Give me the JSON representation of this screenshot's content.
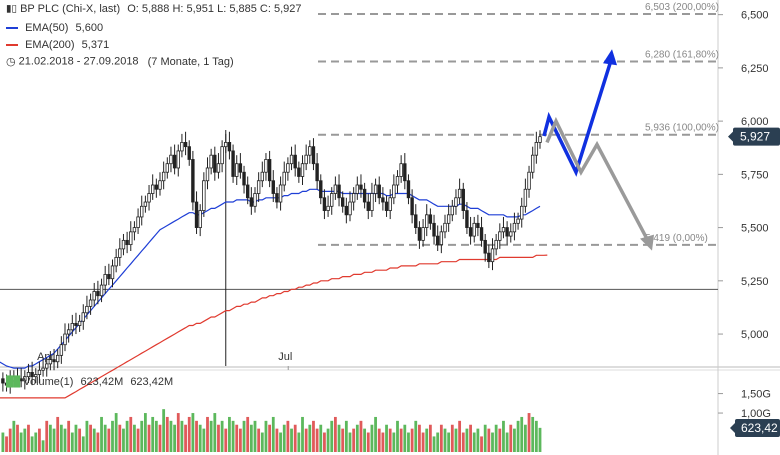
{
  "header": {
    "instrument": "BP PLC (Chi-X, last)",
    "ohlc": "O: 5,888  H: 5,951  L: 5,885  C: 5,927",
    "ema50_label": "EMA(50)",
    "ema50_value": "5,600",
    "ema200_label": "EMA(200)",
    "ema200_value": "5,371",
    "period": "21.02.2018 - 27.09.2018",
    "period_detail": "(7 Monate, 1 Tag)"
  },
  "volume_legend": {
    "label": "Volume(1)",
    "value1": "623,42M",
    "value2": "623,42M"
  },
  "colors": {
    "candle": "#222222",
    "ema50": "#1f3fd6",
    "ema200": "#e03a2f",
    "fib": "#999999",
    "arrow_up": "#1030e0",
    "arrow_gray": "#9a9a9a",
    "volume_up": "#5cb85c",
    "volume_down": "#e05a5a",
    "badge": "#2b3f52"
  },
  "chart_data": {
    "type": "candlestick",
    "price_axis": {
      "ylim": [
        4.85,
        6.55
      ],
      "ticks": [
        "6,500",
        "6,250",
        "6,000",
        "5,750",
        "5,500",
        "5,250",
        "5,000"
      ],
      "tick_values": [
        6.5,
        6.25,
        6.0,
        5.75,
        5.5,
        5.25,
        5.0
      ]
    },
    "volume_axis": {
      "ylim": [
        0,
        1.9
      ],
      "ticks": [
        "1,50G",
        "1,00G"
      ],
      "tick_values": [
        1.5,
        1.0
      ]
    },
    "x_labels": [
      {
        "label": "Apr",
        "index": 20
      },
      {
        "label": "Jul",
        "index": 86
      }
    ],
    "last_price": "5,927",
    "last_volume": "623,42",
    "fib_levels": [
      {
        "label": "6,503 (200,00%)",
        "value": 6.503
      },
      {
        "label": "6,280 (161,80%)",
        "value": 6.28
      },
      {
        "label": "5,936 (100,00%)",
        "value": 5.936
      },
      {
        "label": "5,419 (0,00%)",
        "value": 5.419
      }
    ],
    "horizontal_line": 5.21,
    "vertical_line_index": 70,
    "close": [
      4.82,
      4.8,
      4.78,
      4.79,
      4.77,
      4.75,
      4.78,
      4.8,
      4.79,
      4.77,
      4.76,
      4.78,
      4.8,
      4.79,
      4.78,
      4.8,
      4.82,
      4.8,
      4.81,
      4.83,
      4.84,
      4.86,
      4.88,
      4.87,
      4.9,
      4.95,
      5.0,
      5.02,
      5.05,
      5.04,
      5.06,
      5.1,
      5.13,
      5.16,
      5.2,
      5.18,
      5.23,
      5.28,
      5.26,
      5.32,
      5.36,
      5.4,
      5.44,
      5.42,
      5.48,
      5.5,
      5.55,
      5.6,
      5.62,
      5.66,
      5.7,
      5.68,
      5.72,
      5.76,
      5.8,
      5.84,
      5.78,
      5.86,
      5.9,
      5.88,
      5.82,
      5.62,
      5.5,
      5.58,
      5.72,
      5.78,
      5.84,
      5.76,
      5.8,
      5.88,
      5.9,
      5.86,
      5.74,
      5.8,
      5.76,
      5.7,
      5.64,
      5.6,
      5.66,
      5.72,
      5.76,
      5.82,
      5.72,
      5.66,
      5.62,
      5.7,
      5.76,
      5.8,
      5.84,
      5.78,
      5.74,
      5.8,
      5.84,
      5.88,
      5.8,
      5.72,
      5.64,
      5.58,
      5.6,
      5.66,
      5.7,
      5.64,
      5.6,
      5.56,
      5.62,
      5.66,
      5.7,
      5.68,
      5.62,
      5.58,
      5.66,
      5.7,
      5.64,
      5.62,
      5.58,
      5.64,
      5.7,
      5.74,
      5.8,
      5.72,
      5.64,
      5.56,
      5.5,
      5.44,
      5.5,
      5.56,
      5.52,
      5.46,
      5.42,
      5.48,
      5.52,
      5.56,
      5.6,
      5.64,
      5.68,
      5.58,
      5.5,
      5.46,
      5.52,
      5.5,
      5.44,
      5.38,
      5.34,
      5.4,
      5.44,
      5.48,
      5.5,
      5.46,
      5.48,
      5.52,
      5.54,
      5.6,
      5.68,
      5.76,
      5.84,
      5.9,
      5.927
    ],
    "ema50": [
      4.95,
      4.94,
      4.93,
      4.92,
      4.91,
      4.9,
      4.89,
      4.88,
      4.87,
      4.86,
      4.85,
      4.845,
      4.84,
      4.84,
      4.84,
      4.84,
      4.85,
      4.85,
      4.86,
      4.87,
      4.88,
      4.89,
      4.9,
      4.91,
      4.93,
      4.95,
      4.97,
      4.99,
      5.01,
      5.03,
      5.05,
      5.07,
      5.09,
      5.11,
      5.13,
      5.15,
      5.17,
      5.19,
      5.21,
      5.23,
      5.25,
      5.27,
      5.29,
      5.31,
      5.33,
      5.35,
      5.37,
      5.39,
      5.41,
      5.43,
      5.45,
      5.47,
      5.49,
      5.5,
      5.51,
      5.52,
      5.53,
      5.54,
      5.55,
      5.56,
      5.57,
      5.57,
      5.56,
      5.56,
      5.57,
      5.58,
      5.59,
      5.59,
      5.6,
      5.61,
      5.62,
      5.62,
      5.62,
      5.63,
      5.63,
      5.63,
      5.63,
      5.62,
      5.62,
      5.63,
      5.63,
      5.64,
      5.64,
      5.64,
      5.64,
      5.64,
      5.65,
      5.65,
      5.66,
      5.66,
      5.66,
      5.67,
      5.67,
      5.68,
      5.68,
      5.68,
      5.67,
      5.67,
      5.67,
      5.67,
      5.67,
      5.67,
      5.66,
      5.66,
      5.66,
      5.66,
      5.66,
      5.66,
      5.66,
      5.66,
      5.66,
      5.66,
      5.66,
      5.66,
      5.65,
      5.65,
      5.66,
      5.66,
      5.66,
      5.66,
      5.66,
      5.65,
      5.64,
      5.63,
      5.63,
      5.63,
      5.62,
      5.61,
      5.6,
      5.6,
      5.6,
      5.6,
      5.6,
      5.6,
      5.61,
      5.61,
      5.6,
      5.59,
      5.59,
      5.59,
      5.58,
      5.57,
      5.56,
      5.56,
      5.56,
      5.56,
      5.56,
      5.55,
      5.55,
      5.55,
      5.55,
      5.56,
      5.56,
      5.57,
      5.58,
      5.59,
      5.6
    ],
    "ema200": [
      4.7,
      4.7,
      4.7,
      4.7,
      4.7,
      4.7,
      4.7,
      4.7,
      4.7,
      4.7,
      4.7,
      4.7,
      4.7,
      4.7,
      4.7,
      4.7,
      4.7,
      4.7,
      4.7,
      4.7,
      4.7,
      4.7,
      4.7,
      4.7,
      4.7,
      4.7,
      4.7,
      4.71,
      4.72,
      4.73,
      4.74,
      4.75,
      4.76,
      4.77,
      4.78,
      4.79,
      4.8,
      4.81,
      4.82,
      4.83,
      4.84,
      4.85,
      4.86,
      4.87,
      4.88,
      4.89,
      4.9,
      4.91,
      4.92,
      4.93,
      4.94,
      4.95,
      4.96,
      4.97,
      4.98,
      4.99,
      5.0,
      5.01,
      5.02,
      5.03,
      5.04,
      5.04,
      5.05,
      5.05,
      5.06,
      5.07,
      5.08,
      5.08,
      5.09,
      5.1,
      5.11,
      5.11,
      5.12,
      5.13,
      5.13,
      5.14,
      5.14,
      5.15,
      5.15,
      5.16,
      5.17,
      5.17,
      5.18,
      5.18,
      5.19,
      5.19,
      5.2,
      5.2,
      5.21,
      5.21,
      5.22,
      5.22,
      5.23,
      5.23,
      5.24,
      5.24,
      5.25,
      5.25,
      5.25,
      5.26,
      5.26,
      5.26,
      5.27,
      5.27,
      5.27,
      5.28,
      5.28,
      5.28,
      5.29,
      5.29,
      5.29,
      5.3,
      5.3,
      5.3,
      5.3,
      5.31,
      5.31,
      5.31,
      5.32,
      5.32,
      5.32,
      5.32,
      5.32,
      5.33,
      5.33,
      5.33,
      5.33,
      5.33,
      5.33,
      5.34,
      5.34,
      5.34,
      5.34,
      5.34,
      5.35,
      5.35,
      5.35,
      5.35,
      5.35,
      5.35,
      5.35,
      5.35,
      5.35,
      5.35,
      5.35,
      5.36,
      5.36,
      5.36,
      5.36,
      5.36,
      5.36,
      5.36,
      5.36,
      5.36,
      5.36,
      5.37,
      5.37,
      5.37,
      5.371
    ],
    "volume": [
      0.3,
      0.8,
      0.6,
      0.7,
      0.5,
      0.9,
      0.4,
      0.6,
      0.7,
      0.5,
      0.4,
      0.6,
      0.8,
      0.7,
      0.5,
      0.6,
      0.7,
      0.4,
      0.5,
      0.6,
      0.3,
      0.8,
      0.7,
      0.6,
      0.9,
      0.7,
      0.6,
      0.8,
      0.5,
      0.7,
      0.6,
      0.4,
      0.8,
      0.7,
      0.6,
      0.5,
      0.9,
      0.7,
      0.6,
      0.8,
      1.0,
      0.7,
      0.6,
      0.8,
      0.9,
      0.7,
      0.6,
      0.8,
      1.0,
      0.7,
      0.9,
      0.8,
      0.7,
      1.1,
      0.9,
      0.8,
      0.7,
      1.0,
      0.8,
      0.7,
      0.9,
      1.0,
      0.8,
      0.7,
      0.6,
      0.9,
      0.8,
      1.0,
      0.7,
      0.8,
      0.6,
      0.9,
      0.8,
      0.7,
      0.6,
      0.8,
      0.9,
      0.7,
      0.8,
      0.6,
      0.5,
      0.8,
      0.7,
      0.9,
      0.6,
      0.5,
      0.7,
      0.8,
      0.6,
      0.7,
      0.5,
      0.9,
      0.6,
      0.7,
      0.8,
      0.6,
      0.7,
      0.5,
      0.6,
      0.8,
      0.9,
      0.7,
      0.6,
      0.8,
      0.5,
      0.6,
      0.7,
      0.8,
      0.6,
      0.5,
      0.7,
      0.9,
      0.6,
      0.5,
      0.7,
      0.6,
      0.5,
      0.8,
      0.6,
      0.7,
      0.5,
      0.6,
      0.8,
      0.7,
      0.5,
      0.6,
      0.7,
      0.4,
      0.5,
      0.7,
      0.6,
      0.5,
      0.7,
      0.6,
      0.8,
      0.5,
      0.6,
      0.7,
      0.5,
      0.6,
      0.4,
      0.7,
      0.6,
      0.5,
      0.7,
      0.6,
      0.8,
      0.5,
      0.7,
      0.6,
      0.8,
      0.9,
      0.7,
      1.0,
      0.9,
      0.8,
      0.62
    ],
    "volume_up": [
      1,
      0,
      1,
      0,
      1,
      0,
      1,
      1,
      0,
      1,
      0,
      0,
      1,
      0,
      1,
      1,
      0,
      1,
      1,
      0,
      1,
      0,
      1,
      1,
      0,
      1,
      1,
      0,
      1,
      1,
      0,
      1,
      1,
      0,
      1,
      0,
      1,
      1,
      0,
      1,
      1,
      0,
      1,
      1,
      0,
      1,
      0,
      1,
      1,
      0,
      1,
      1,
      0,
      1,
      0,
      1,
      1,
      0,
      1,
      0,
      0,
      1,
      0,
      1,
      1,
      0,
      1,
      1,
      0,
      1,
      0,
      1,
      1,
      0,
      0,
      1,
      0,
      1,
      1,
      0,
      1,
      1,
      0,
      1,
      0,
      1,
      1,
      0,
      1,
      0,
      1,
      1,
      0,
      1,
      0,
      0,
      1,
      0,
      1,
      1,
      0,
      1,
      0,
      1,
      1,
      0,
      1,
      0,
      1,
      0,
      1,
      1,
      0,
      0,
      1,
      0,
      1,
      1,
      0,
      1,
      1,
      0,
      1,
      0,
      0,
      1,
      0,
      1,
      1,
      0,
      1,
      1,
      0,
      1,
      0,
      0,
      1,
      0,
      1,
      1,
      0,
      1,
      0,
      1,
      1,
      0,
      1,
      1,
      0,
      1,
      1,
      1,
      1,
      0,
      1,
      1,
      1
    ],
    "projection_blue": [
      [
        5.93
      ],
      [
        6.02
      ],
      [
        5.76
      ],
      [
        6.3
      ]
    ],
    "projection_gray": [
      [
        5.9
      ],
      [
        6.0
      ],
      [
        5.76
      ],
      [
        5.89
      ],
      [
        5.42
      ]
    ]
  }
}
